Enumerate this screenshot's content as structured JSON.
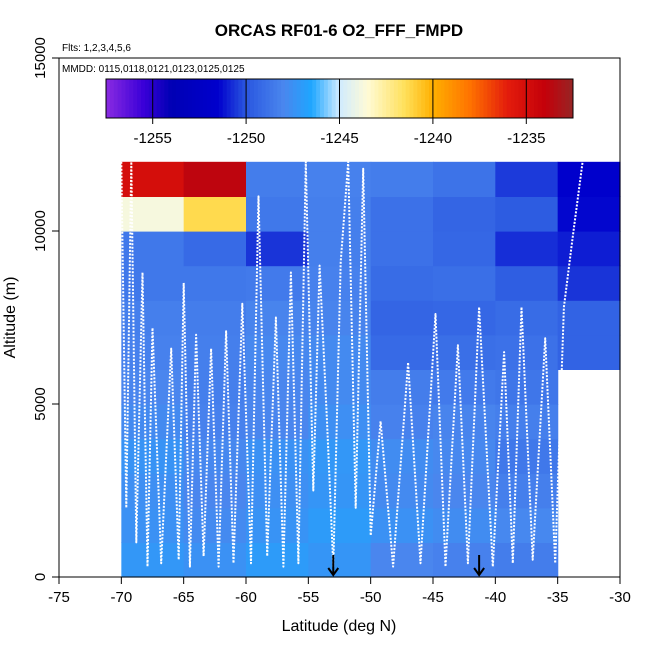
{
  "chart_data": {
    "type": "heatmap",
    "title": "ORCAS RF01-6 O2_FFF_FMPD",
    "flights_label": "Flts: 1,2,3,4,5,6",
    "dates_label": "MMDD: 0115,0118,0121,0123,0125,0125",
    "xlabel": "Latitude (deg N)",
    "ylabel": "Altitude (m)",
    "xlim": [
      -75,
      -30
    ],
    "ylim": [
      0,
      15000
    ],
    "xticks": [
      -75,
      -70,
      -65,
      -60,
      -55,
      -50,
      -45,
      -40,
      -35,
      -30
    ],
    "xtick_labels": [
      "-75",
      "-70",
      "-65",
      "-60",
      "-55",
      "-50",
      "-45",
      "-40",
      "-35",
      "-30"
    ],
    "yticks": [
      0,
      5000,
      10000,
      15000
    ],
    "ytick_labels": [
      "0",
      "5000",
      "10000",
      "15000"
    ],
    "colorbar": {
      "range": [
        -1257.5,
        -1232.5
      ],
      "ticks": [
        -1255,
        -1250,
        -1245,
        -1240,
        -1235
      ],
      "tick_labels": [
        "-1255",
        "-1250",
        "-1245",
        "-1240",
        "-1235"
      ],
      "stops": [
        {
          "v": -1257.5,
          "c": "#8a2be2"
        },
        {
          "v": -1255.5,
          "c": "#3a00d8"
        },
        {
          "v": -1254.0,
          "c": "#0000b4"
        },
        {
          "v": -1251.5,
          "c": "#0000cd"
        },
        {
          "v": -1250.0,
          "c": "#2a57e0"
        },
        {
          "v": -1248.0,
          "c": "#4a86ee"
        },
        {
          "v": -1246.5,
          "c": "#1ea6ff"
        },
        {
          "v": -1245.0,
          "c": "#d0ebff"
        },
        {
          "v": -1243.5,
          "c": "#fffbd6"
        },
        {
          "v": -1241.5,
          "c": "#ffe05a"
        },
        {
          "v": -1240.0,
          "c": "#ffb000"
        },
        {
          "v": -1238.0,
          "c": "#ff7200"
        },
        {
          "v": -1236.0,
          "c": "#e31c0c"
        },
        {
          "v": -1234.0,
          "c": "#c4000a"
        },
        {
          "v": -1232.5,
          "c": "#972525"
        }
      ]
    },
    "grid": {
      "lat_edges": [
        -70,
        -65,
        -60,
        -55,
        -50,
        -45,
        -40,
        -35,
        -30
      ],
      "alt_edges": [
        0,
        1000,
        2000,
        3000,
        4000,
        5000,
        6000,
        7000,
        8000,
        9000,
        10000,
        11000,
        12000
      ],
      "values": [
        [
          -1247.2,
          -1247.5,
          -1247.0,
          -1247.3,
          -1248.0,
          -1248.2,
          -1248.4,
          null
        ],
        [
          -1247.5,
          -1247.8,
          -1247.4,
          -1247.0,
          -1247.5,
          -1247.7,
          -1247.9,
          null
        ],
        [
          -1247.6,
          -1248.0,
          -1247.6,
          -1247.3,
          -1247.8,
          -1248.0,
          -1248.3,
          null
        ],
        [
          -1247.4,
          -1247.9,
          -1247.5,
          -1247.2,
          -1247.7,
          -1247.9,
          -1248.6,
          null
        ],
        [
          -1247.8,
          -1248.2,
          -1248.0,
          -1247.6,
          -1248.2,
          -1248.1,
          -1248.3,
          null
        ],
        [
          -1248.0,
          -1248.3,
          -1248.0,
          -1247.8,
          -1248.4,
          -1248.5,
          -1248.7,
          null
        ],
        [
          -1248.2,
          -1248.3,
          -1247.9,
          -1247.8,
          -1249.2,
          -1249.0,
          -1248.9,
          -1249.5
        ],
        [
          -1248.3,
          -1248.4,
          -1248.1,
          -1248.1,
          -1249.4,
          -1249.3,
          -1249.1,
          -1249.5
        ],
        [
          -1248.6,
          -1248.6,
          -1248.5,
          -1248.2,
          -1249.1,
          -1249.0,
          -1249.7,
          -1250.6
        ],
        [
          -1248.6,
          -1249.2,
          -1250.6,
          -1248.3,
          -1248.9,
          -1249.3,
          -1250.7,
          -1251.0
        ],
        [
          -1243.8,
          -1241.3,
          -1248.6,
          -1248.3,
          -1248.9,
          -1249.4,
          -1249.8,
          -1251.4
        ],
        [
          -1235.0,
          -1233.8,
          -1248.4,
          -1248.2,
          -1248.4,
          -1248.8,
          -1250.5,
          -1251.6
        ]
      ]
    },
    "flight_track": [
      [
        -70,
        12000
      ],
      [
        -69.6,
        2000
      ],
      [
        -69.2,
        12000
      ],
      [
        -68.8,
        1000
      ],
      [
        -68.3,
        8800
      ],
      [
        -67.9,
        300
      ],
      [
        -67.5,
        7200
      ],
      [
        -66.8,
        400
      ],
      [
        -66.0,
        6600
      ],
      [
        -65.4,
        500
      ],
      [
        -65.0,
        8500
      ],
      [
        -64.5,
        300
      ],
      [
        -64.0,
        7000
      ],
      [
        -63.4,
        600
      ],
      [
        -62.8,
        6600
      ],
      [
        -62.2,
        300
      ],
      [
        -61.6,
        7100
      ],
      [
        -61.0,
        400
      ],
      [
        -60.3,
        7900
      ],
      [
        -59.6,
        400
      ],
      [
        -59.0,
        11000
      ],
      [
        -58.3,
        600
      ],
      [
        -57.6,
        7500
      ],
      [
        -57.0,
        300
      ],
      [
        -56.4,
        8800
      ],
      [
        -55.8,
        400
      ],
      [
        -55.2,
        12000
      ],
      [
        -54.6,
        2500
      ],
      [
        -54.1,
        9000
      ],
      [
        -53.5,
        4500
      ],
      [
        -53.0,
        300
      ],
      [
        -52.4,
        9100
      ],
      [
        -51.8,
        12000
      ],
      [
        -51.2,
        2000
      ],
      [
        -50.6,
        11800
      ],
      [
        -50.0,
        1200
      ],
      [
        -49.2,
        4500
      ],
      [
        -48.2,
        300
      ],
      [
        -47.0,
        6200
      ],
      [
        -46.0,
        400
      ],
      [
        -44.8,
        7600
      ],
      [
        -44.0,
        300
      ],
      [
        -43.0,
        6700
      ],
      [
        -42.2,
        400
      ],
      [
        -41.3,
        7800
      ],
      [
        -40.2,
        300
      ],
      [
        -39.3,
        6500
      ],
      [
        -38.6,
        400
      ],
      [
        -37.9,
        7800
      ],
      [
        -37.0,
        500
      ],
      [
        -36.0,
        6900
      ],
      [
        -35.2,
        400
      ],
      [
        -34.5,
        7800
      ],
      [
        -33.8,
        9800
      ],
      [
        -33.0,
        12000
      ]
    ],
    "arrows_at_lat": [
      -53.0,
      -41.3
    ]
  }
}
